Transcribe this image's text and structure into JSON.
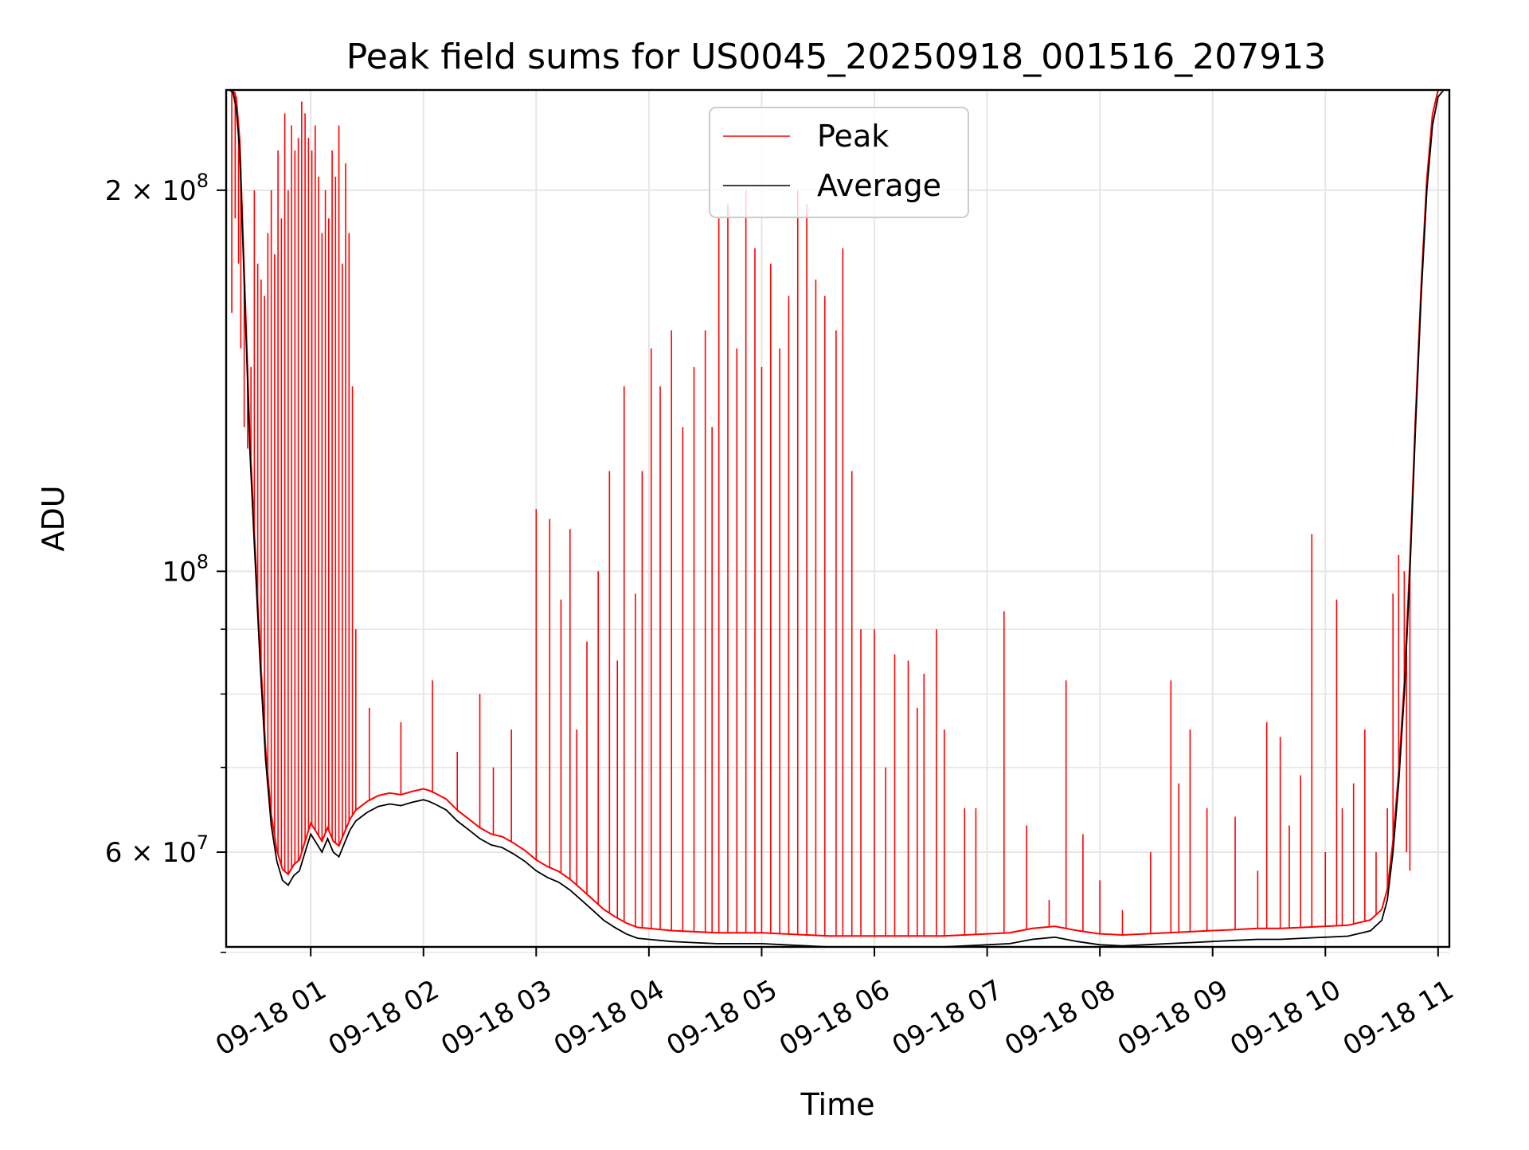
{
  "chart_data": {
    "type": "line",
    "title": "Peak field sums for US0045_20250918_001516_207913",
    "xlabel": "Time",
    "ylabel": "ADU",
    "y_scale": "log",
    "x_unit": "hour of 2025-09-18",
    "x_range": [
      0.25,
      11.1
    ],
    "ylim": [
      50500000,
      240000000
    ],
    "grid": true,
    "legend": {
      "placement": "upper center",
      "entries": [
        "Peak",
        "Average"
      ]
    },
    "colors": {
      "peak": "#ff0000",
      "average": "#000000",
      "grid": "#e6e6e6"
    },
    "x_ticks": [
      {
        "value": 1,
        "label": "09-18 01"
      },
      {
        "value": 2,
        "label": "09-18 02"
      },
      {
        "value": 3,
        "label": "09-18 03"
      },
      {
        "value": 4,
        "label": "09-18 04"
      },
      {
        "value": 5,
        "label": "09-18 05"
      },
      {
        "value": 6,
        "label": "09-18 06"
      },
      {
        "value": 7,
        "label": "09-18 07"
      },
      {
        "value": 8,
        "label": "09-18 08"
      },
      {
        "value": 9,
        "label": "09-18 09"
      },
      {
        "value": 10,
        "label": "09-18 10"
      },
      {
        "value": 11,
        "label": "09-18 11"
      }
    ],
    "y_major_ticks": [
      {
        "value": 60000000,
        "mantissa": "6 × 10",
        "exp": "7"
      },
      {
        "value": 100000000,
        "mantissa": "10",
        "exp": "8"
      },
      {
        "value": 200000000,
        "mantissa": "2 × 10",
        "exp": "8"
      }
    ],
    "y_minor_ticks": [
      50000000,
      70000000,
      80000000,
      90000000
    ],
    "series": [
      {
        "name": "Average",
        "x": [
          0.25,
          0.28,
          0.31,
          0.34,
          0.37,
          0.4,
          0.43,
          0.46,
          0.5,
          0.55,
          0.6,
          0.65,
          0.7,
          0.75,
          0.8,
          0.85,
          0.9,
          0.95,
          1.0,
          1.05,
          1.1,
          1.15,
          1.2,
          1.25,
          1.3,
          1.35,
          1.4,
          1.45,
          1.5,
          1.6,
          1.7,
          1.8,
          1.9,
          2.0,
          2.05,
          2.1,
          2.2,
          2.3,
          2.4,
          2.5,
          2.6,
          2.7,
          2.8,
          2.9,
          3.0,
          3.1,
          3.2,
          3.3,
          3.4,
          3.5,
          3.6,
          3.7,
          3.8,
          3.9,
          4.0,
          4.2,
          4.4,
          4.6,
          4.8,
          5.0,
          5.2,
          5.4,
          5.6,
          5.8,
          6.0,
          6.2,
          6.4,
          6.6,
          6.8,
          7.0,
          7.2,
          7.4,
          7.6,
          7.7,
          7.8,
          8.0,
          8.2,
          8.4,
          8.6,
          8.8,
          9.0,
          9.2,
          9.4,
          9.6,
          9.8,
          10.0,
          10.2,
          10.4,
          10.5,
          10.55,
          10.6,
          10.65,
          10.7,
          10.75,
          10.8,
          10.85,
          10.9,
          10.95,
          11.0,
          11.05,
          11.1
        ],
        "values": [
          240000000,
          240000000,
          239000000,
          232000000,
          215000000,
          180000000,
          150000000,
          125000000,
          105000000,
          85000000,
          71000000,
          63000000,
          59000000,
          57000000,
          56500000,
          57500000,
          58000000,
          60000000,
          62000000,
          61000000,
          60000000,
          61500000,
          60000000,
          59500000,
          61000000,
          62500000,
          63500000,
          64000000,
          64500000,
          65200000,
          65500000,
          65300000,
          65700000,
          66000000,
          65800000,
          65500000,
          64800000,
          63500000,
          62500000,
          61500000,
          60800000,
          60500000,
          59800000,
          59000000,
          58000000,
          57300000,
          56800000,
          56000000,
          55000000,
          54000000,
          53000000,
          52300000,
          51700000,
          51300000,
          51200000,
          51000000,
          50900000,
          50800000,
          50800000,
          50800000,
          50700000,
          50600000,
          50500000,
          50500000,
          50500000,
          50500000,
          50500000,
          50500000,
          50600000,
          50700000,
          50800000,
          51200000,
          51400000,
          51200000,
          51000000,
          50700000,
          50600000,
          50700000,
          50800000,
          50900000,
          51000000,
          51100000,
          51200000,
          51200000,
          51300000,
          51400000,
          51500000,
          52000000,
          53000000,
          55000000,
          60000000,
          68000000,
          80000000,
          100000000,
          130000000,
          165000000,
          200000000,
          225000000,
          237000000,
          240000000,
          240000000
        ]
      },
      {
        "name": "Peak",
        "x": [
          0.3,
          0.33,
          0.36,
          0.38,
          0.41,
          0.44,
          0.47,
          0.5,
          0.53,
          0.56,
          0.59,
          0.62,
          0.65,
          0.68,
          0.71,
          0.74,
          0.77,
          0.8,
          0.83,
          0.86,
          0.89,
          0.92,
          0.95,
          0.98,
          1.01,
          1.04,
          1.07,
          1.1,
          1.13,
          1.16,
          1.19,
          1.22,
          1.25,
          1.28,
          1.31,
          1.34,
          1.37,
          1.4,
          1.52,
          1.8,
          2.08,
          2.3,
          2.5,
          2.62,
          2.78,
          3.0,
          3.12,
          3.22,
          3.3,
          3.36,
          3.45,
          3.55,
          3.65,
          3.72,
          3.78,
          3.88,
          3.94,
          4.02,
          4.1,
          4.2,
          4.3,
          4.4,
          4.5,
          4.56,
          4.62,
          4.7,
          4.78,
          4.86,
          4.94,
          5.0,
          5.08,
          5.16,
          5.24,
          5.32,
          5.4,
          5.48,
          5.56,
          5.66,
          5.72,
          5.8,
          5.88,
          6.0,
          6.1,
          6.18,
          6.3,
          6.38,
          6.44,
          6.55,
          6.62,
          6.8,
          6.9,
          7.15,
          7.35,
          7.55,
          7.7,
          7.85,
          8.0,
          8.2,
          8.45,
          8.63,
          8.7,
          8.8,
          8.95,
          9.2,
          9.4,
          9.48,
          9.6,
          9.68,
          9.78,
          9.88,
          10.0,
          10.1,
          10.15,
          10.25,
          10.35,
          10.45,
          10.55,
          10.6,
          10.65,
          10.7,
          10.72,
          10.75
        ],
        "values": [
          160000000,
          190000000,
          175000000,
          150000000,
          130000000,
          125000000,
          145000000,
          200000000,
          175000000,
          170000000,
          165000000,
          185000000,
          200000000,
          178000000,
          215000000,
          190000000,
          230000000,
          200000000,
          225000000,
          215000000,
          220000000,
          235000000,
          230000000,
          220000000,
          215000000,
          225000000,
          205000000,
          185000000,
          200000000,
          190000000,
          215000000,
          205000000,
          225000000,
          175000000,
          210000000,
          185000000,
          140000000,
          90000000,
          78000000,
          76000000,
          82000000,
          72000000,
          80000000,
          70000000,
          75000000,
          112000000,
          110000000,
          95000000,
          108000000,
          75000000,
          88000000,
          100000000,
          120000000,
          85000000,
          140000000,
          96000000,
          120000000,
          150000000,
          140000000,
          155000000,
          130000000,
          145000000,
          155000000,
          130000000,
          190000000,
          195000000,
          150000000,
          200000000,
          180000000,
          145000000,
          175000000,
          150000000,
          165000000,
          200000000,
          195000000,
          170000000,
          165000000,
          155000000,
          180000000,
          120000000,
          90000000,
          90000000,
          70000000,
          86000000,
          85000000,
          78000000,
          83000000,
          90000000,
          75000000,
          65000000,
          65000000,
          93000000,
          63000000,
          55000000,
          82000000,
          62000000,
          57000000,
          54000000,
          60000000,
          82000000,
          68000000,
          75000000,
          65000000,
          64000000,
          58000000,
          76000000,
          74000000,
          63000000,
          69000000,
          107000000,
          60000000,
          95000000,
          65000000,
          68000000,
          75000000,
          60000000,
          65000000,
          96000000,
          103000000,
          100000000,
          60000000,
          58000000
        ]
      }
    ]
  }
}
